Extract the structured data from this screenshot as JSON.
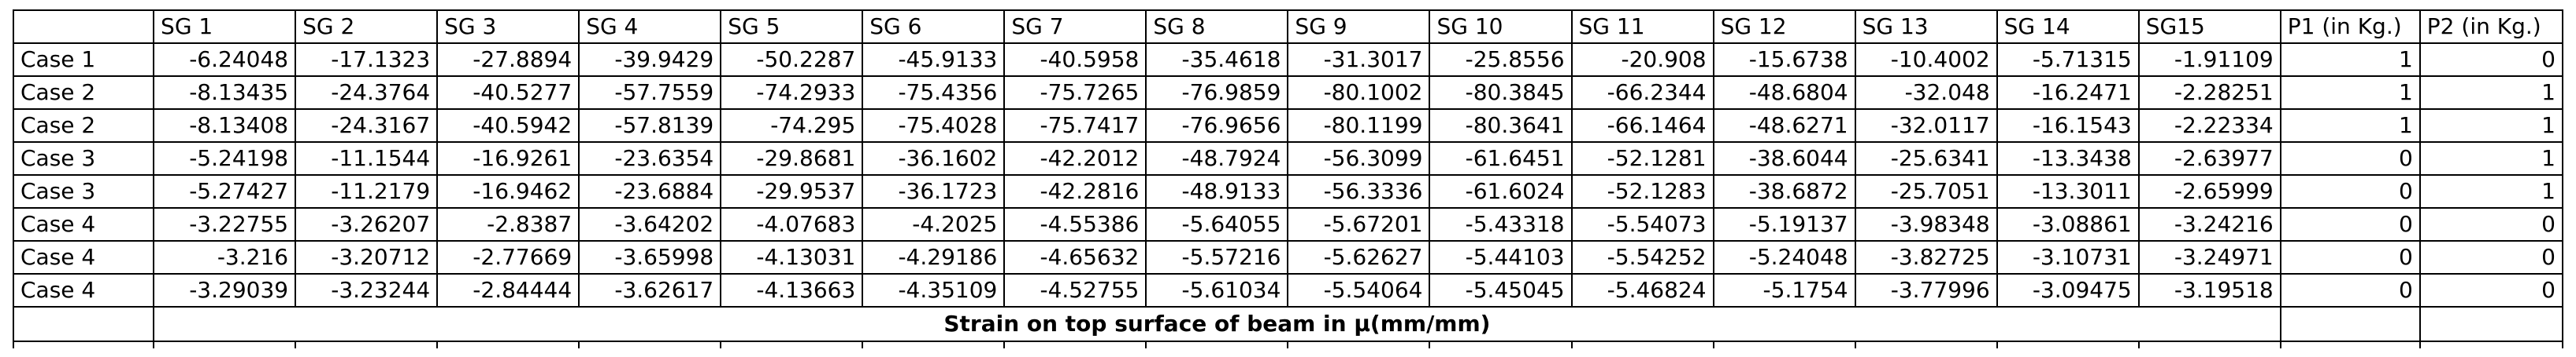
{
  "table": {
    "corner": "",
    "headers": [
      "SG 1",
      "SG 2",
      "SG 3",
      "SG 4",
      "SG 5",
      "SG 6",
      "SG 7",
      "SG 8",
      "SG 9",
      "SG 10",
      "SG 11",
      "SG 12",
      "SG 13",
      "SG 14",
      "SG15",
      "P1 (in Kg.)",
      "P2 (in Kg.)"
    ],
    "rows": [
      {
        "case": "Case 1",
        "values": [
          "-6.24048",
          "-17.1323",
          "-27.8894",
          "-39.9429",
          "-50.2287",
          "-45.9133",
          "-40.5958",
          "-35.4618",
          "-31.3017",
          "-25.8556",
          "-20.908",
          "-15.6738",
          "-10.4002",
          "-5.71315",
          "-1.91109",
          "1",
          "0"
        ]
      },
      {
        "case": "Case 2",
        "values": [
          "-8.13435",
          "-24.3764",
          "-40.5277",
          "-57.7559",
          "-74.2933",
          "-75.4356",
          "-75.7265",
          "-76.9859",
          "-80.1002",
          "-80.3845",
          "-66.2344",
          "-48.6804",
          "-32.048",
          "-16.2471",
          "-2.28251",
          "1",
          "1"
        ]
      },
      {
        "case": "Case 2",
        "values": [
          "-8.13408",
          "-24.3167",
          "-40.5942",
          "-57.8139",
          "-74.295",
          "-75.4028",
          "-75.7417",
          "-76.9656",
          "-80.1199",
          "-80.3641",
          "-66.1464",
          "-48.6271",
          "-32.0117",
          "-16.1543",
          "-2.22334",
          "1",
          "1"
        ]
      },
      {
        "case": "Case 3",
        "values": [
          "-5.24198",
          "-11.1544",
          "-16.9261",
          "-23.6354",
          "-29.8681",
          "-36.1602",
          "-42.2012",
          "-48.7924",
          "-56.3099",
          "-61.6451",
          "-52.1281",
          "-38.6044",
          "-25.6341",
          "-13.3438",
          "-2.63977",
          "0",
          "1"
        ]
      },
      {
        "case": "Case 3",
        "values": [
          "-5.27427",
          "-11.2179",
          "-16.9462",
          "-23.6884",
          "-29.9537",
          "-36.1723",
          "-42.2816",
          "-48.9133",
          "-56.3336",
          "-61.6024",
          "-52.1283",
          "-38.6872",
          "-25.7051",
          "-13.3011",
          "-2.65999",
          "0",
          "1"
        ]
      },
      {
        "case": "Case 4",
        "values": [
          "-3.22755",
          "-3.26207",
          "-2.8387",
          "-3.64202",
          "-4.07683",
          "-4.2025",
          "-4.55386",
          "-5.64055",
          "-5.67201",
          "-5.43318",
          "-5.54073",
          "-5.19137",
          "-3.98348",
          "-3.08861",
          "-3.24216",
          "0",
          "0"
        ]
      },
      {
        "case": "Case 4",
        "values": [
          "-3.216",
          "-3.20712",
          "-2.77669",
          "-3.65998",
          "-4.13031",
          "-4.29186",
          "-4.65632",
          "-5.57216",
          "-5.62627",
          "-5.44103",
          "-5.54252",
          "-5.24048",
          "-3.82725",
          "-3.10731",
          "-3.24971",
          "0",
          "0"
        ]
      },
      {
        "case": "Case 4",
        "values": [
          "-3.29039",
          "-3.23244",
          "-2.84444",
          "-3.62617",
          "-4.13663",
          "-4.35109",
          "-4.52755",
          "-5.61034",
          "-5.54064",
          "-5.45045",
          "-5.46824",
          "-5.1754",
          "-3.77996",
          "-3.09475",
          "-3.19518",
          "0",
          "0"
        ]
      }
    ],
    "caption": "Strain on top surface of beam in μ(mm/mm)"
  }
}
